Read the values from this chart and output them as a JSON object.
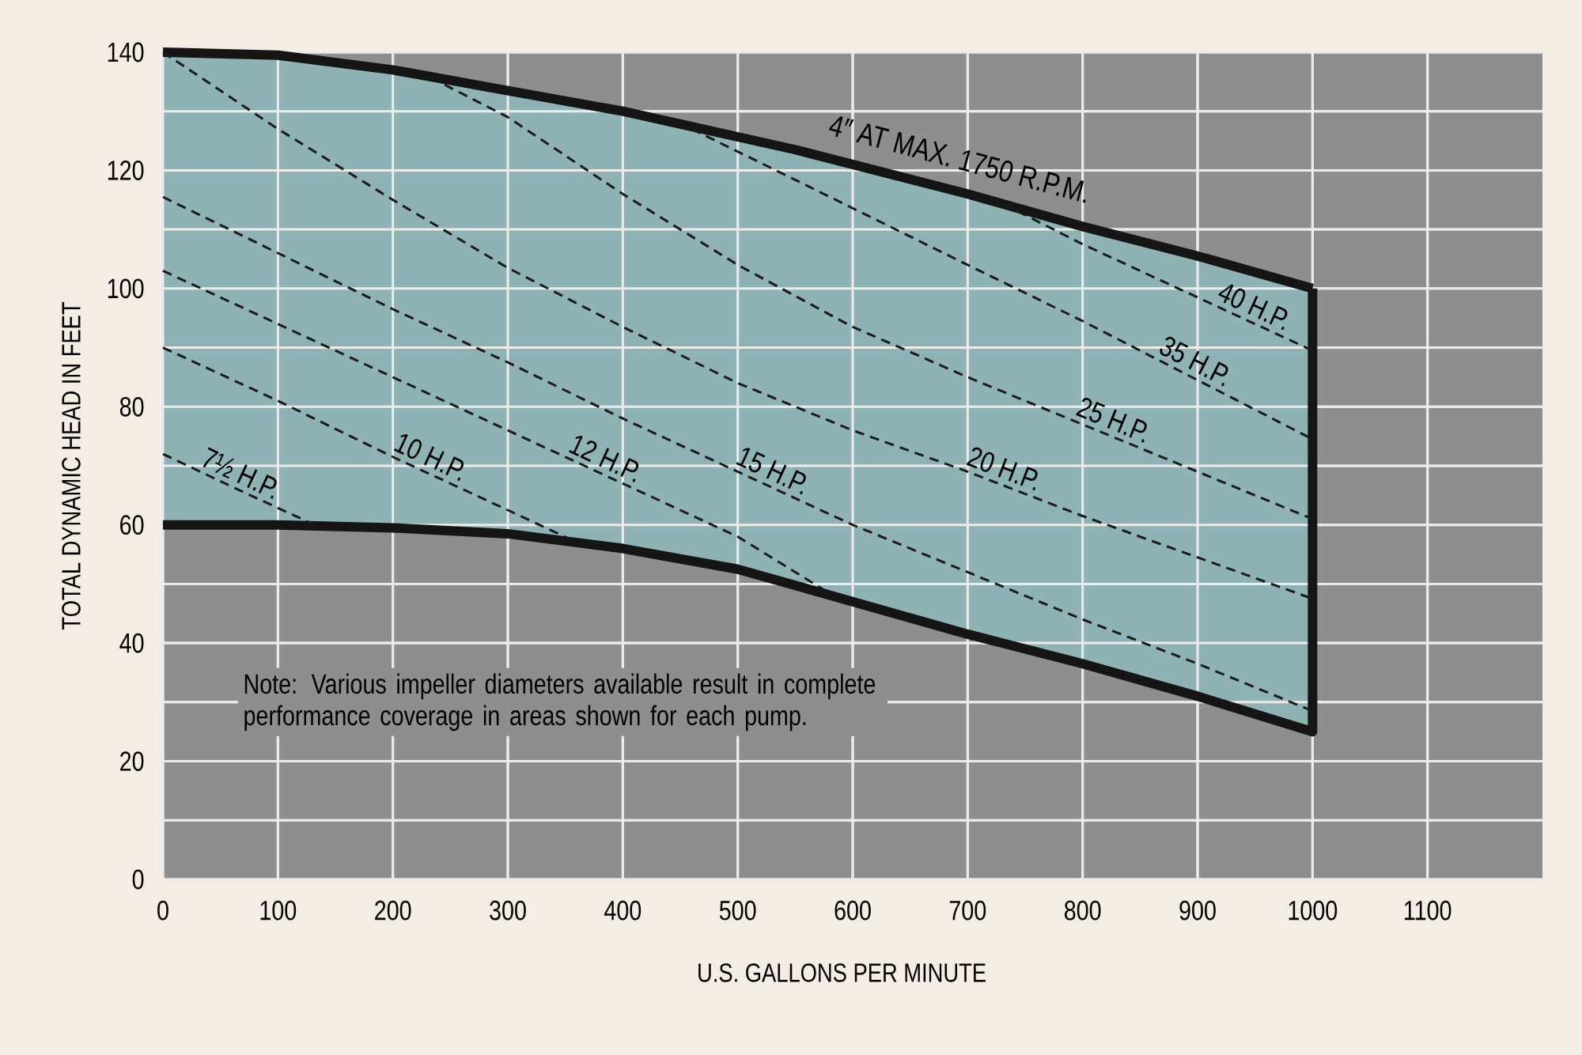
{
  "chart_data": {
    "type": "line",
    "xlabel": "U.S. GALLONS PER MINUTE",
    "ylabel": "TOTAL DYNAMIC HEAD IN FEET",
    "xlim": [
      0,
      1200
    ],
    "ylim": [
      0,
      140
    ],
    "xticks": [
      0,
      100,
      200,
      300,
      400,
      500,
      600,
      700,
      800,
      900,
      1000,
      1100
    ],
    "yticks": [
      0,
      {
        "value": 10,
        "label": null
      },
      20,
      {
        "value": 30,
        "label": null
      },
      40,
      {
        "value": 50,
        "label": null
      },
      60,
      {
        "value": 70,
        "label": null
      },
      80,
      {
        "value": 90,
        "label": null
      },
      100,
      {
        "value": 110,
        "label": null
      },
      120,
      {
        "value": 130,
        "label": null
      },
      140
    ],
    "grid": true,
    "annotations": [
      "Note: Various impeller diameters available result in complete performance coverage in areas shown for each pump."
    ],
    "series": [
      {
        "name": "4″ AT MAX. 1750 R.P.M.",
        "color": "#151515",
        "line_style": "solid",
        "x": [
          0,
          100,
          200,
          300,
          400,
          550,
          700,
          800,
          900,
          1000
        ],
        "values": [
          140,
          139.5,
          137,
          133.5,
          130,
          123.5,
          116,
          110.5,
          105.5,
          100
        ],
        "upper": [
          140,
          139.5,
          137,
          133.5,
          130,
          123.5,
          116,
          110.5,
          105.5,
          100
        ],
        "lower": [
          60,
          60,
          59.5,
          58.5,
          56,
          50,
          41.5,
          36.5,
          31,
          25
        ]
      },
      {
        "color": "#151515",
        "line_style": "solid",
        "x": [
          0,
          100,
          200,
          300,
          400,
          500,
          600,
          700,
          800,
          900,
          1000,
          1000
        ],
        "values": [
          60,
          60,
          59.5,
          58.5,
          56,
          52.5,
          47,
          41.5,
          36.5,
          31,
          25,
          100
        ]
      },
      {
        "name": "7½ H.P.",
        "color": "#1a1a1a",
        "line_style": "dashed",
        "x": [
          0,
          65,
          132
        ],
        "values": [
          72,
          66,
          60
        ]
      },
      {
        "name": "10 H.P.",
        "color": "#1a1a1a",
        "line_style": "dashed",
        "x": [
          0,
          100,
          200,
          300,
          355
        ],
        "values": [
          90,
          81,
          71.5,
          62.5,
          57.5
        ]
      },
      {
        "name": "12 H.P.",
        "color": "#1a1a1a",
        "line_style": "dashed",
        "x": [
          0,
          100,
          200,
          300,
          400,
          500,
          575
        ],
        "values": [
          103,
          94,
          85,
          76,
          67,
          58,
          49
        ]
      },
      {
        "name": "15 H.P.",
        "color": "#1a1a1a",
        "line_style": "dashed",
        "x": [
          0,
          100,
          200,
          300,
          400,
          500,
          600,
          700,
          800,
          900,
          1000
        ],
        "values": [
          115.5,
          106,
          96.5,
          87.5,
          78,
          69,
          60,
          52,
          44,
          36.5,
          28.5
        ]
      },
      {
        "name": "20 H.P.",
        "color": "#1a1a1a",
        "line_style": "dashed",
        "x": [
          0,
          100,
          200,
          300,
          400,
          500,
          600,
          700,
          800,
          900,
          1000
        ],
        "values": [
          140,
          127,
          115,
          103.5,
          93.5,
          84,
          76,
          69,
          61.5,
          54.5,
          47.5
        ]
      },
      {
        "name": "25 H.P.",
        "color": "#1a1a1a",
        "line_style": "dashed",
        "x": [
          245,
          300,
          400,
          500,
          600,
          700,
          800,
          900,
          1000
        ],
        "values": [
          134.5,
          129,
          116,
          104,
          93.5,
          85,
          77,
          69,
          61
        ]
      },
      {
        "name": "35 H.P.",
        "color": "#1a1a1a",
        "line_style": "dashed",
        "x": [
          460,
          575,
          700,
          800,
          900,
          1000
        ],
        "values": [
          127,
          116,
          104,
          94.5,
          84.5,
          74.5
        ]
      },
      {
        "name": "40 H.P.",
        "color": "#1a1a1a",
        "line_style": "dashed",
        "x": [
          719,
          800,
          900,
          1000
        ],
        "values": [
          115.5,
          107.5,
          98.5,
          89.5
        ]
      }
    ]
  }
}
